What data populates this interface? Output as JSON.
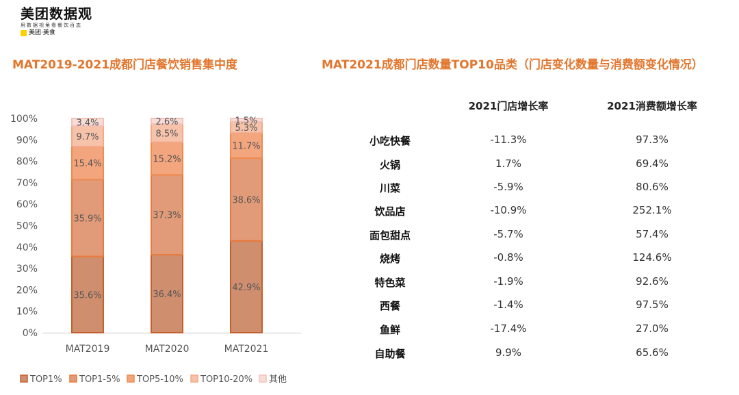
{
  "logo": {
    "main": "美团数据观",
    "sub": "用数据视角看餐饮百态",
    "brand": "美团·美食"
  },
  "left_title": "MAT2019-2021成都门店餐饮销售集中度",
  "right_title": "MAT2021成都门店数量TOP10品类（门店变化数量与消费额变化情况）",
  "chart_data": {
    "type": "bar",
    "stacked": true,
    "categories": [
      "MAT2019",
      "MAT2020",
      "MAT2021"
    ],
    "series": [
      {
        "name": "TOP1%",
        "values": [
          35.6,
          36.4,
          42.9
        ],
        "labels": [
          "35.6%",
          "36.4%",
          "42.9%"
        ]
      },
      {
        "name": "TOP1-5%",
        "values": [
          35.9,
          37.3,
          38.6
        ],
        "labels": [
          "35.9%",
          "37.3%",
          "38.6%"
        ]
      },
      {
        "name": "TOP5-10%",
        "values": [
          15.4,
          15.2,
          11.7
        ],
        "labels": [
          "15.4%",
          "15.2%",
          "11.7%"
        ]
      },
      {
        "name": "TOP10-20%",
        "values": [
          9.7,
          8.5,
          5.3
        ],
        "labels": [
          "9.7%",
          "8.5%",
          "5.3%"
        ]
      },
      {
        "name": "其他",
        "values": [
          3.4,
          2.6,
          1.5
        ],
        "labels": [
          "3.4%",
          "2.6%",
          "1.5%"
        ]
      }
    ],
    "colors": [
      "#cf8f6f",
      "#e29b78",
      "#f3a57e",
      "#f6c2aa",
      "#f9dcd5"
    ],
    "border_colors": [
      "#c5602c",
      "#ea7a3c",
      "#f08a4e",
      "#f3a98a",
      "#f2c3bd"
    ],
    "yticks": [
      "0%",
      "10%",
      "20%",
      "30%",
      "40%",
      "50%",
      "60%",
      "70%",
      "80%",
      "90%",
      "100%"
    ],
    "ylim": [
      0,
      100
    ],
    "legend_position": "bottom"
  },
  "table": {
    "headers": [
      "2021门店增长率",
      "2021消费额增长率"
    ],
    "rows": [
      {
        "category": "小吃快餐",
        "store_growth": "-11.3%",
        "spend_growth": "97.3%"
      },
      {
        "category": "火锅",
        "store_growth": "1.7%",
        "spend_growth": "69.4%"
      },
      {
        "category": "川菜",
        "store_growth": "-5.9%",
        "spend_growth": "80.6%"
      },
      {
        "category": "饮品店",
        "store_growth": "-10.9%",
        "spend_growth": "252.1%"
      },
      {
        "category": "面包甜点",
        "store_growth": "-5.7%",
        "spend_growth": "57.4%"
      },
      {
        "category": "烧烤",
        "store_growth": "-0.8%",
        "spend_growth": "124.6%"
      },
      {
        "category": "特色菜",
        "store_growth": "-1.9%",
        "spend_growth": "92.6%"
      },
      {
        "category": "西餐",
        "store_growth": "-1.4%",
        "spend_growth": "97.5%"
      },
      {
        "category": "鱼鲜",
        "store_growth": "-17.4%",
        "spend_growth": "27.0%"
      },
      {
        "category": "自助餐",
        "store_growth": "9.9%",
        "spend_growth": "65.6%"
      }
    ]
  }
}
